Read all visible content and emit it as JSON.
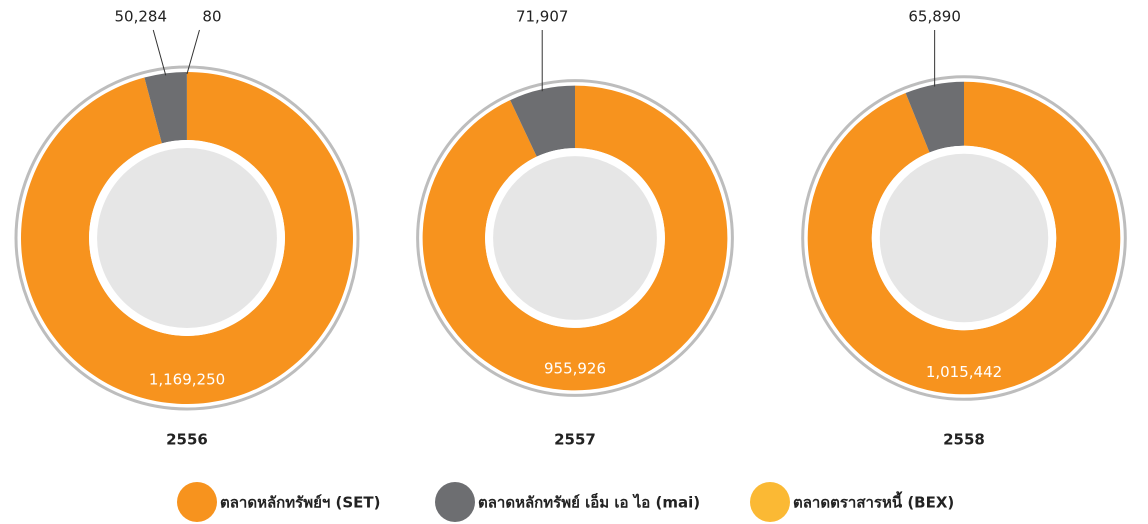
{
  "chart_data": [
    {
      "type": "donut",
      "title": "2556",
      "categories": [
        "ตลาดหลักทรัพย์ฯ (SET)",
        "ตลาดหลักทรัพย์ เอ็ม เอ ไอ (mai)",
        "ตลาดตราสารหนี้ (BEX)"
      ],
      "values": [
        1169250,
        50284,
        80
      ],
      "value_labels": [
        "1,169,250",
        "50,284",
        "80"
      ],
      "colors": [
        "#f7931e",
        "#6d6e71",
        "#fbb934"
      ]
    },
    {
      "type": "donut",
      "title": "2557",
      "categories": [
        "ตลาดหลักทรัพย์ฯ (SET)",
        "ตลาดหลักทรัพย์ เอ็ม เอ ไอ (mai)"
      ],
      "values": [
        955926,
        71907
      ],
      "value_labels": [
        "955,926",
        "71,907"
      ],
      "colors": [
        "#f7931e",
        "#6d6e71"
      ]
    },
    {
      "type": "donut",
      "title": "2558",
      "categories": [
        "ตลาดหลักทรัพย์ฯ (SET)",
        "ตลาดหลักทรัพย์ เอ็ม เอ ไอ (mai)"
      ],
      "values": [
        1015442,
        65890
      ],
      "value_labels": [
        "1,015,442",
        "65,890"
      ],
      "colors": [
        "#f7931e",
        "#6d6e71"
      ]
    }
  ]
}
